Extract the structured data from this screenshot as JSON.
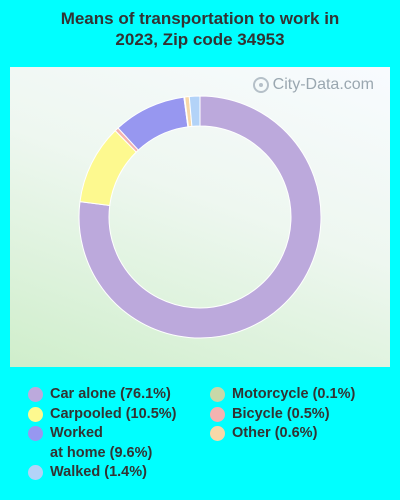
{
  "title_line1": "Means of transportation to work in",
  "title_line2": "2023, Zip code 34953",
  "watermark": "City-Data.com",
  "chart_data": {
    "type": "pie",
    "title": "Means of transportation to work in 2023, Zip code 34953",
    "series": [
      {
        "name": "Car alone",
        "value": 76.1,
        "label": "Car alone (76.1%)",
        "color": "#bca9dc"
      },
      {
        "name": "Carpooled",
        "value": 10.5,
        "label": "Carpooled (10.5%)",
        "color": "#fdf98f"
      },
      {
        "name": "Bicycle",
        "value": 0.5,
        "label": "Bicycle (0.5%)",
        "color": "#f4b3b0"
      },
      {
        "name": "Worked at home",
        "value": 9.6,
        "label_line1": "Worked",
        "label_line2": "at home (9.6%)",
        "color": "#9797f0"
      },
      {
        "name": "Motorcycle",
        "value": 0.1,
        "label": "Motorcycle (0.1%)",
        "color": "#c8d8a8"
      },
      {
        "name": "Other",
        "value": 0.6,
        "label": "Other (0.6%)",
        "color": "#f8d8a8"
      },
      {
        "name": "Walked",
        "value": 1.4,
        "label": "Walked (1.4%)",
        "color": "#b3d3f8"
      }
    ],
    "legend_placement": "bottom"
  },
  "legend": {
    "left": [
      {
        "key": "car",
        "text": "Car alone (76.1%)",
        "color": "#bca9dc"
      },
      {
        "key": "carpooled",
        "text": "Carpooled (10.5%)",
        "color": "#fdf98f"
      },
      {
        "key": "home",
        "text1": "Worked",
        "text2": "at home (9.6%)",
        "color": "#9797f0"
      },
      {
        "key": "walked",
        "text": "Walked (1.4%)",
        "color": "#b3d3f8"
      }
    ],
    "right": [
      {
        "key": "motorcycle",
        "text": "Motorcycle (0.1%)",
        "color": "#c8d8a8"
      },
      {
        "key": "bicycle",
        "text": "Bicycle (0.5%)",
        "color": "#f4b3b0"
      },
      {
        "key": "other",
        "text": "Other (0.6%)",
        "color": "#f8d8a8"
      }
    ]
  }
}
